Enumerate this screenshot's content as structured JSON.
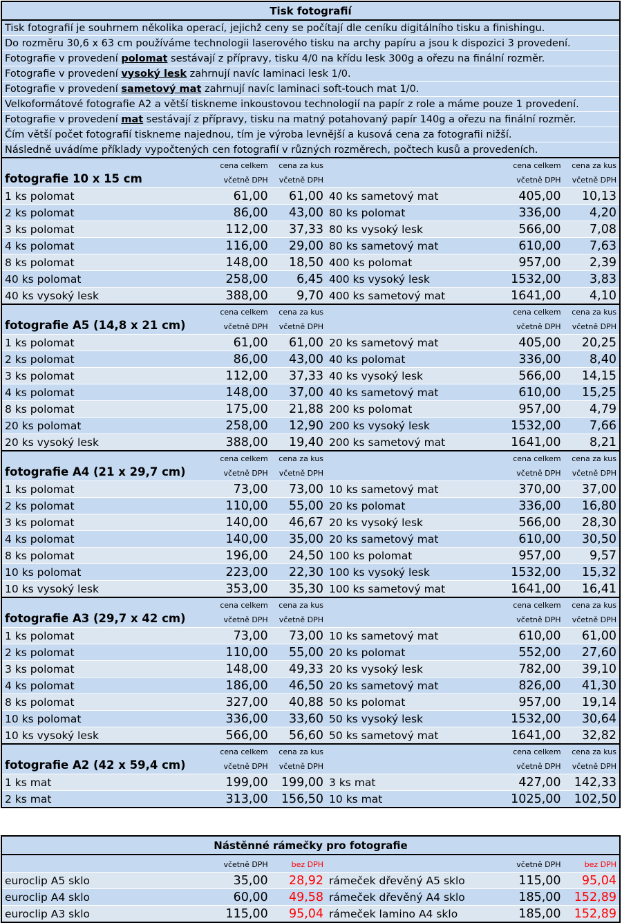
{
  "print": {
    "title": "Tisk fotografií",
    "intro": [
      {
        "pre": "Tisk fotografií je souhrnem několika operací, jejichž ceny se počítají dle ceníku digitálního tisku a finishingu.",
        "bold": "",
        "post": ""
      },
      {
        "pre": "Do rozměru 30,6 x 63 cm používáme technologii laserového tisku na archy papíru a jsou k dispozici 3 provedení.",
        "bold": "",
        "post": ""
      },
      {
        "pre": "Fotografie v provedení ",
        "bold": "polomat",
        "post": " sestávají z přípravy, tisku 4/0 na křídu lesk 300g a ořezu na finální rozměr."
      },
      {
        "pre": "Fotografie v provedení ",
        "bold": "vysoký lesk",
        "post": " zahrnují navíc laminaci lesk 1/0."
      },
      {
        "pre": "Fotografie v provedení ",
        "bold": "sametový mat",
        "post": " zahrnují navíc laminaci soft-touch mat 1/0."
      },
      {
        "pre": "Velkoformátové fotografie A2 a větší tiskneme inkoustovou technologií na papír z role a máme pouze 1 provedení.",
        "bold": "",
        "post": ""
      },
      {
        "pre": "Fotografie v provedení ",
        "bold": "mat",
        "post": " sestávají z přípravy, tisku na matný potahovaný papír 140g a ořezu na finální rozměr."
      },
      {
        "pre": "Čím větší počet fotografií tiskneme najednou, tím je výroba levnější a kusová cena za fotografii nižší.",
        "bold": "",
        "post": ""
      },
      {
        "pre": "Následně uvádíme příklady vypočtených cen fotografií v různých rozměrech, počtech kusů a provedeních.",
        "bold": "",
        "post": ""
      }
    ],
    "labels": {
      "total_top": "cena celkem",
      "unit_top": "cena za kus",
      "vat": "včetně DPH"
    },
    "sections": [
      {
        "title": "fotografie 10 x 15 cm",
        "rows": [
          [
            "1 ks polomat",
            "61,00",
            "61,00",
            "40 ks sametový mat",
            "405,00",
            "10,13"
          ],
          [
            "2 ks polomat",
            "86,00",
            "43,00",
            "80 ks polomat",
            "336,00",
            "4,20"
          ],
          [
            "3 ks polomat",
            "112,00",
            "37,33",
            "80 ks vysoký lesk",
            "566,00",
            "7,08"
          ],
          [
            "4 ks polomat",
            "116,00",
            "29,00",
            "80 ks sametový mat",
            "610,00",
            "7,63"
          ],
          [
            "8 ks polomat",
            "148,00",
            "18,50",
            "400 ks polomat",
            "957,00",
            "2,39"
          ],
          [
            "40 ks polomat",
            "258,00",
            "6,45",
            "400 ks vysoký lesk",
            "1532,00",
            "3,83"
          ],
          [
            "40 ks vysoký lesk",
            "388,00",
            "9,70",
            "400 ks sametový mat",
            "1641,00",
            "4,10"
          ]
        ]
      },
      {
        "title": "fotografie A5 (14,8 x 21 cm)",
        "rows": [
          [
            "1 ks polomat",
            "61,00",
            "61,00",
            "20 ks sametový mat",
            "405,00",
            "20,25"
          ],
          [
            "2 ks polomat",
            "86,00",
            "43,00",
            "40 ks polomat",
            "336,00",
            "8,40"
          ],
          [
            "3 ks polomat",
            "112,00",
            "37,33",
            "40 ks vysoký lesk",
            "566,00",
            "14,15"
          ],
          [
            "4 ks polomat",
            "148,00",
            "37,00",
            "40 ks sametový mat",
            "610,00",
            "15,25"
          ],
          [
            "8 ks polomat",
            "175,00",
            "21,88",
            "200 ks polomat",
            "957,00",
            "4,79"
          ],
          [
            "20 ks polomat",
            "258,00",
            "12,90",
            "200 ks vysoký lesk",
            "1532,00",
            "7,66"
          ],
          [
            "20 ks vysoký lesk",
            "388,00",
            "19,40",
            "200 ks sametový mat",
            "1641,00",
            "8,21"
          ]
        ]
      },
      {
        "title": "fotografie A4 (21 x 29,7 cm)",
        "rows": [
          [
            "1 ks polomat",
            "73,00",
            "73,00",
            "10 ks sametový mat",
            "370,00",
            "37,00"
          ],
          [
            "2 ks polomat",
            "110,00",
            "55,00",
            "20 ks polomat",
            "336,00",
            "16,80"
          ],
          [
            "3 ks polomat",
            "140,00",
            "46,67",
            "20 ks vysoký lesk",
            "566,00",
            "28,30"
          ],
          [
            "4 ks polomat",
            "140,00",
            "35,00",
            "20 ks sametový mat",
            "610,00",
            "30,50"
          ],
          [
            "8 ks polomat",
            "196,00",
            "24,50",
            "100 ks polomat",
            "957,00",
            "9,57"
          ],
          [
            "10 ks polomat",
            "223,00",
            "22,30",
            "100 ks vysoký lesk",
            "1532,00",
            "15,32"
          ],
          [
            "10 ks vysoký lesk",
            "353,00",
            "35,30",
            "100 ks sametový mat",
            "1641,00",
            "16,41"
          ]
        ]
      },
      {
        "title": "fotografie A3 (29,7 x 42 cm)",
        "rows": [
          [
            "1 ks polomat",
            "73,00",
            "73,00",
            "10 ks sametový mat",
            "610,00",
            "61,00"
          ],
          [
            "2 ks polomat",
            "110,00",
            "55,00",
            "20 ks polomat",
            "552,00",
            "27,60"
          ],
          [
            "3 ks polomat",
            "148,00",
            "49,33",
            "20 ks vysoký lesk",
            "782,00",
            "39,10"
          ],
          [
            "4 ks polomat",
            "186,00",
            "46,50",
            "20 ks sametový mat",
            "826,00",
            "41,30"
          ],
          [
            "8 ks polomat",
            "327,00",
            "40,88",
            "50 ks polomat",
            "957,00",
            "19,14"
          ],
          [
            "10 ks polomat",
            "336,00",
            "33,60",
            "50 ks vysoký lesk",
            "1532,00",
            "30,64"
          ],
          [
            "10 ks vysoký lesk",
            "566,00",
            "56,60",
            "50 ks sametový mat",
            "1641,00",
            "32,82"
          ]
        ]
      },
      {
        "title": "fotografie A2 (42 x 59,4 cm)",
        "rows": [
          [
            "1 ks mat",
            "199,00",
            "199,00",
            "3 ks mat",
            "427,00",
            "142,33"
          ],
          [
            "2 ks mat",
            "313,00",
            "156,50",
            "10 ks mat",
            "1025,00",
            "102,50"
          ]
        ]
      }
    ]
  },
  "frames": {
    "title": "Nástěnné rámečky pro fotografie",
    "label_vat": "včetně DPH",
    "label_novat": "bez DPH",
    "rows": [
      [
        "euroclip A5 sklo",
        "35,00",
        "28,92",
        "rámeček dřevěný A5 sklo",
        "115,00",
        "95,04"
      ],
      [
        "euroclip A4 sklo",
        "60,00",
        "49,58",
        "rámeček dřevěný A4 sklo",
        "185,00",
        "152,89"
      ],
      [
        "euroclip A3 sklo",
        "115,00",
        "95,04",
        "rámeček lamino A4 sklo",
        "185,00",
        "152,89"
      ]
    ]
  },
  "colors": {
    "header_fill": "#c5d9f1",
    "row_alt_fill": "#dce6f1",
    "border": "#000000",
    "no_vat_text": "#ff0000"
  }
}
